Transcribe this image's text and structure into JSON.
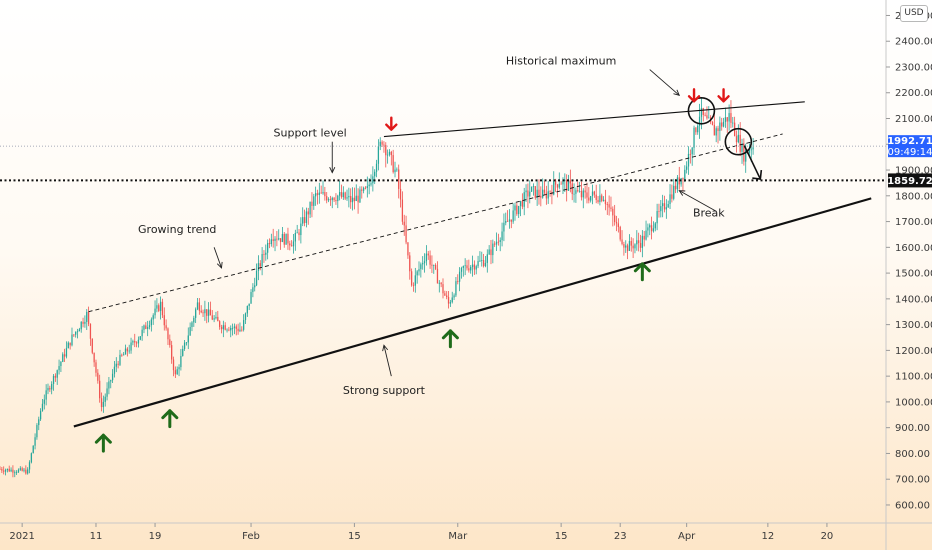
{
  "chart_data": {
    "type": "candlestick",
    "currency": "USD",
    "y_ticks": [
      "2500.00",
      "2400.00",
      "2300.00",
      "2200.00",
      "2100.00",
      "2000.00",
      "1900.00",
      "1800.00",
      "1700.00",
      "1600.00",
      "1500.00",
      "1400.00",
      "1300.00",
      "1200.00",
      "1100.00",
      "1000.00",
      "900.00",
      "800.00",
      "700.00",
      "600.00"
    ],
    "y_tick_values": [
      2500,
      2400,
      2300,
      2200,
      2100,
      2000,
      1900,
      1800,
      1700,
      1600,
      1500,
      1400,
      1300,
      1200,
      1100,
      1000,
      900,
      800,
      700,
      600
    ],
    "ylim": [
      530,
      2560
    ],
    "x_start": "2020-12-29",
    "x_end": "2021-04-28",
    "x_ticks": [
      {
        "label": "2021",
        "date": "2021-01-01"
      },
      {
        "label": "11",
        "date": "2021-01-11"
      },
      {
        "label": "19",
        "date": "2021-01-19"
      },
      {
        "label": "Feb",
        "date": "2021-02-01"
      },
      {
        "label": "15",
        "date": "2021-02-15"
      },
      {
        "label": "Mar",
        "date": "2021-03-01"
      },
      {
        "label": "15",
        "date": "2021-03-15"
      },
      {
        "label": "23",
        "date": "2021-03-23"
      },
      {
        "label": "Apr",
        "date": "2021-04-01"
      },
      {
        "label": "12",
        "date": "2021-04-12"
      },
      {
        "label": "20",
        "date": "2021-04-20"
      }
    ],
    "price_keypoints": [
      [
        "2020-12-29",
        740
      ],
      [
        "2021-01-02",
        730
      ],
      [
        "2021-01-04",
        1000
      ],
      [
        "2021-01-08",
        1250
      ],
      [
        "2021-01-10",
        1340
      ],
      [
        "2021-01-12",
        980
      ],
      [
        "2021-01-14",
        1150
      ],
      [
        "2021-01-17",
        1250
      ],
      [
        "2021-01-20",
        1380
      ],
      [
        "2021-01-22",
        1100
      ],
      [
        "2021-01-25",
        1380
      ],
      [
        "2021-01-28",
        1300
      ],
      [
        "2021-01-31",
        1280
      ],
      [
        "2021-02-02",
        1500
      ],
      [
        "2021-02-04",
        1650
      ],
      [
        "2021-02-07",
        1620
      ],
      [
        "2021-02-10",
        1800
      ],
      [
        "2021-02-13",
        1800
      ],
      [
        "2021-02-15",
        1780
      ],
      [
        "2021-02-17",
        1820
      ],
      [
        "2021-02-19",
        2020
      ],
      [
        "2021-02-21",
        1880
      ],
      [
        "2021-02-23",
        1450
      ],
      [
        "2021-02-25",
        1580
      ],
      [
        "2021-02-28",
        1380
      ],
      [
        "2021-03-02",
        1520
      ],
      [
        "2021-03-05",
        1550
      ],
      [
        "2021-03-08",
        1700
      ],
      [
        "2021-03-11",
        1820
      ],
      [
        "2021-03-13",
        1800
      ],
      [
        "2021-03-15",
        1860
      ],
      [
        "2021-03-18",
        1800
      ],
      [
        "2021-03-21",
        1800
      ],
      [
        "2021-03-24",
        1600
      ],
      [
        "2021-03-26",
        1620
      ],
      [
        "2021-03-29",
        1750
      ],
      [
        "2021-04-01",
        1900
      ],
      [
        "2021-04-03",
        2120
      ],
      [
        "2021-04-05",
        2050
      ],
      [
        "2021-04-07",
        2110
      ],
      [
        "2021-04-09",
        1960
      ],
      [
        "2021-04-10",
        1992.71
      ]
    ],
    "last_price": "1992.71",
    "countdown": "09:49:14",
    "level_price": "1859.72",
    "level_value": 1859.72,
    "trendlines": [
      {
        "name": "strong-support",
        "from": [
          "2021-01-08",
          905
        ],
        "to": [
          "2021-04-26",
          1790
        ],
        "style": "solid-thick"
      },
      {
        "name": "growing-trend",
        "from": [
          "2021-01-10",
          1350
        ],
        "to": [
          "2021-04-14",
          2040
        ],
        "style": "dashed"
      },
      {
        "name": "resistance",
        "from": [
          "2021-02-19",
          2030
        ],
        "to": [
          "2021-04-17",
          2165
        ],
        "style": "solid"
      }
    ],
    "annotations": [
      {
        "text": "Historical maximum",
        "at": [
          "2021-03-15",
          2310
        ]
      },
      {
        "text": "Support level",
        "at": [
          "2021-02-09",
          2030
        ]
      },
      {
        "text": "Growing trend",
        "at": [
          "2021-01-22",
          1655
        ]
      },
      {
        "text": "Strong support",
        "at": [
          "2021-02-19",
          1030
        ]
      },
      {
        "text": "Break",
        "at": [
          "2021-04-04",
          1720
        ]
      }
    ],
    "up_arrows": [
      [
        "2021-01-12",
        840
      ],
      [
        "2021-01-21",
        935
      ],
      [
        "2021-02-28",
        1245
      ],
      [
        "2021-03-26",
        1505
      ]
    ],
    "down_arrows": [
      [
        "2021-02-20",
        2080
      ],
      [
        "2021-04-02",
        2190
      ],
      [
        "2021-04-06",
        2190
      ]
    ],
    "colors": {
      "up": "#26a69a",
      "down": "#ef5350",
      "up_arrow": "#1f6b1a",
      "down_arrow": "#e01818",
      "level": "#111111",
      "last_price": "#2962ff"
    }
  }
}
